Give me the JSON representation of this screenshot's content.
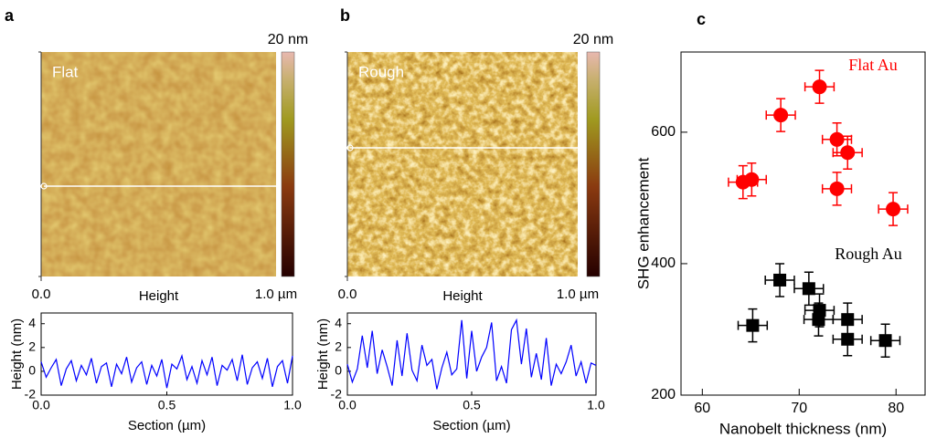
{
  "images": [
    {
      "label": "a",
      "name": "Flat",
      "scale_max": "20 nm",
      "x_start": "0.0",
      "x_label": "Height",
      "x_end": "1.0 µm"
    },
    {
      "label": "b",
      "name": "Rough",
      "scale_max": "20 nm",
      "x_start": "0.0",
      "x_label": "Height",
      "x_end": "1.0 µm"
    }
  ],
  "chart_data": [
    {
      "type": "line",
      "x_label": "Section (µm)",
      "y_label": "Height (nm)",
      "x": [
        0,
        0.02,
        0.04,
        0.06,
        0.08,
        0.1,
        0.12,
        0.14,
        0.16,
        0.18,
        0.2,
        0.22,
        0.24,
        0.26,
        0.28,
        0.3,
        0.32,
        0.34,
        0.36,
        0.38,
        0.4,
        0.42,
        0.44,
        0.46,
        0.48,
        0.5,
        0.52,
        0.54,
        0.56,
        0.58,
        0.6,
        0.62,
        0.64,
        0.66,
        0.68,
        0.7,
        0.72,
        0.74,
        0.76,
        0.78,
        0.8,
        0.82,
        0.84,
        0.86,
        0.88,
        0.9,
        0.92,
        0.94,
        0.96,
        0.98,
        1
      ],
      "series": [
        {
          "color": "#0000ff",
          "values": [
            0.8,
            -0.5,
            0.3,
            1.0,
            -1.2,
            0.2,
            0.9,
            -0.8,
            0.5,
            -0.3,
            1.1,
            -1.0,
            0.4,
            0.7,
            -1.3,
            0.6,
            -0.2,
            1.2,
            -0.9,
            0.3,
            0.8,
            -1.1,
            0.5,
            -0.4,
            1.0,
            -1.4,
            0.6,
            0.2,
            1.3,
            -0.7,
            0.4,
            -1.0,
            0.9,
            -0.3,
            1.2,
            -1.2,
            0.5,
            0.1,
            1.0,
            -0.8,
            1.4,
            -1.1,
            0.3,
            0.8,
            -0.6,
            1.1,
            -1.3,
            0.4,
            0.9,
            -1.0,
            1.3
          ]
        }
      ],
      "xlim": [
        0,
        1
      ],
      "ylim": [
        -2,
        4.9
      ],
      "xticks": [
        {
          "value": 0,
          "label": "0.0"
        },
        {
          "value": 0.5,
          "label": "0.5"
        },
        {
          "value": 1,
          "label": "1.0"
        }
      ],
      "yticks": [
        -2,
        0,
        2,
        4
      ]
    },
    {
      "type": "line",
      "x_label": "Section (µm)",
      "y_label": "Height (nm)",
      "x": [
        0,
        0.02,
        0.04,
        0.06,
        0.08,
        0.1,
        0.12,
        0.14,
        0.16,
        0.18,
        0.2,
        0.22,
        0.24,
        0.26,
        0.28,
        0.3,
        0.32,
        0.34,
        0.36,
        0.38,
        0.4,
        0.42,
        0.44,
        0.46,
        0.48,
        0.5,
        0.52,
        0.54,
        0.56,
        0.58,
        0.6,
        0.62,
        0.64,
        0.66,
        0.68,
        0.7,
        0.72,
        0.74,
        0.76,
        0.78,
        0.8,
        0.82,
        0.84,
        0.86,
        0.88,
        0.9,
        0.92,
        0.94,
        0.96,
        0.98,
        1
      ],
      "series": [
        {
          "color": "#0000ff",
          "values": [
            0.6,
            -0.9,
            0.2,
            3.0,
            0.3,
            3.4,
            -0.2,
            1.8,
            0.4,
            -1.2,
            2.6,
            -0.4,
            3.2,
            0.1,
            -0.8,
            2.2,
            0.5,
            1.0,
            -1.5,
            0.3,
            1.6,
            -0.3,
            0.2,
            4.3,
            -0.6,
            3.4,
            0.0,
            1.2,
            2.0,
            4.1,
            -0.8,
            0.4,
            -1.0,
            3.5,
            4.3,
            0.6,
            3.6,
            -0.5,
            1.5,
            -0.7,
            2.8,
            -1.2,
            0.6,
            -0.2,
            0.8,
            2.2,
            -0.4,
            0.8,
            -1.0,
            0.7,
            0.5
          ]
        }
      ],
      "xlim": [
        0,
        1
      ],
      "ylim": [
        -2,
        4.9
      ],
      "xticks": [
        {
          "value": 0,
          "label": "0.0"
        },
        {
          "value": 0.5,
          "label": "0.5"
        },
        {
          "value": 1,
          "label": "1.0"
        }
      ],
      "yticks": [
        -2,
        0,
        2,
        4
      ]
    },
    {
      "type": "scatter",
      "label": "c",
      "x_label": "Nanobelt thickness (nm)",
      "y_label": "SHG enhancement",
      "series": [
        {
          "name": "Flat Au",
          "color": "#ff0000",
          "marker": "circle",
          "x": [
            64.2,
            65.1,
            68.1,
            72.1,
            73.9,
            75.0,
            73.9,
            79.7
          ],
          "values": [
            524,
            528,
            626,
            669,
            589,
            569,
            514,
            483
          ],
          "xerr": [
            1.5,
            1.5,
            1.5,
            1.5,
            1.5,
            1.5,
            1.5,
            1.5
          ],
          "yerr": [
            25,
            25,
            25,
            25,
            25,
            25,
            25,
            25
          ]
        },
        {
          "name": "Rough Au",
          "color": "#000000",
          "marker": "square",
          "x": [
            65.2,
            68.0,
            71.0,
            72.1,
            72.0,
            75.0,
            75.0,
            78.9
          ],
          "values": [
            306,
            375,
            362,
            329,
            315,
            315,
            285,
            283
          ],
          "xerr": [
            1.5,
            1.5,
            1.5,
            1.5,
            1.5,
            1.5,
            1.5,
            1.5
          ],
          "yerr": [
            25,
            25,
            25,
            25,
            25,
            25,
            25,
            25
          ]
        }
      ],
      "xlim": [
        57.8,
        83
      ],
      "ylim": [
        200,
        722
      ],
      "xticks": [
        60,
        70,
        80
      ],
      "yticks": [
        200,
        400,
        600
      ]
    }
  ]
}
